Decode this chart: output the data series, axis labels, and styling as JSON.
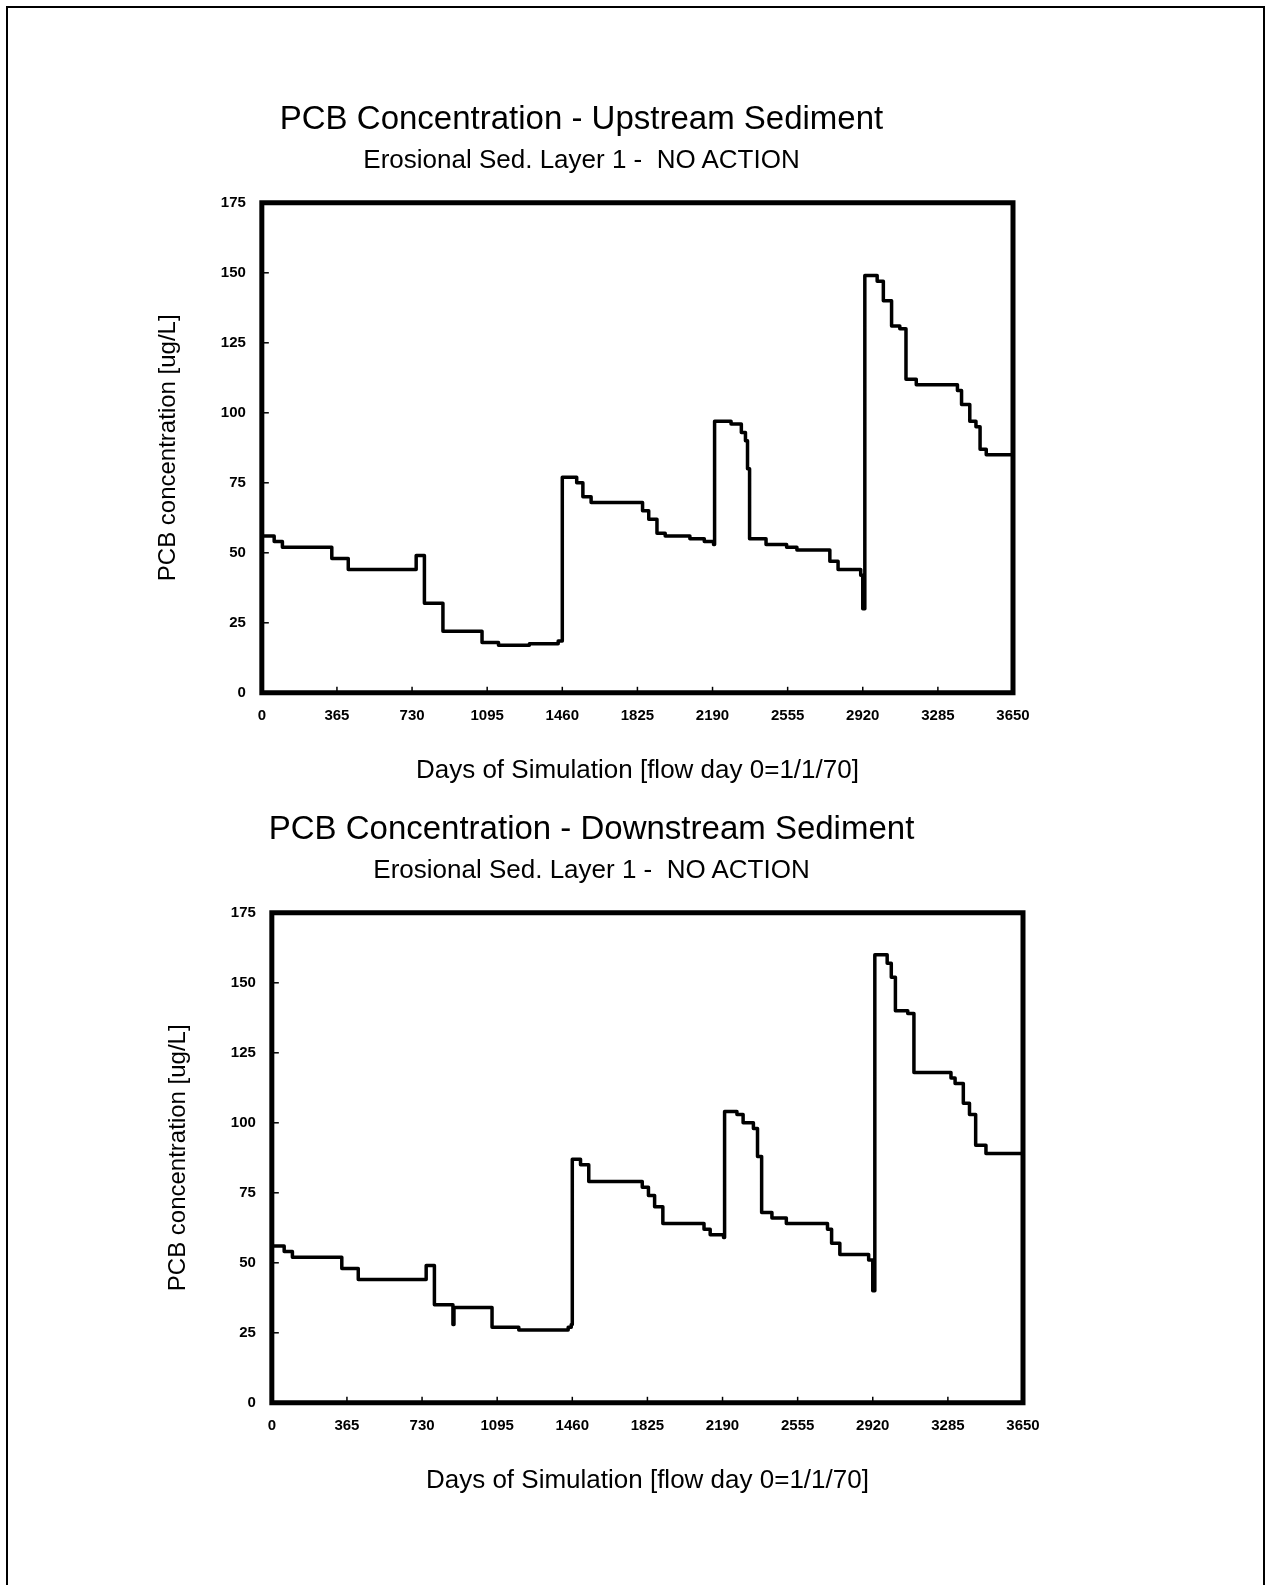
{
  "chart_data": [
    {
      "type": "step",
      "title": "PCB Concentration - Upstream Sediment",
      "subtitle": "Erosional Sed. Layer 1 -  NO ACTION",
      "xlabel": "Days of Simulation [flow day 0=1/1/70]",
      "ylabel": "PCB concentration [ug/L]",
      "xlim": [
        0,
        3650
      ],
      "xticks": [
        0,
        365,
        730,
        1095,
        1460,
        1825,
        2190,
        2555,
        2920,
        3285,
        3650
      ],
      "ylim": [
        0,
        175
      ],
      "yticks": [
        0,
        25,
        50,
        75,
        100,
        125,
        150,
        175
      ],
      "grid": false,
      "legend": false,
      "marker": "none",
      "line_style": "solid",
      "series": [
        {
          "color": "#000000",
          "x": [
            0,
            60,
            100,
            340,
            420,
            750,
            790,
            880,
            1070,
            1150,
            1300,
            1440,
            1460,
            1530,
            1560,
            1600,
            1850,
            1880,
            1920,
            1960,
            2080,
            2150,
            2195,
            2200,
            2280,
            2330,
            2350,
            2360,
            2370,
            2450,
            2550,
            2600,
            2760,
            2800,
            2910,
            2920,
            2930,
            2990,
            3020,
            3060,
            3100,
            3130,
            3180,
            3380,
            3400,
            3440,
            3470,
            3490,
            3520,
            3640,
            3650
          ],
          "values": [
            56,
            54,
            52,
            48,
            44,
            49,
            32,
            22,
            18,
            17,
            17.5,
            18.5,
            77,
            75,
            70,
            68,
            65,
            62,
            57,
            56,
            55,
            54,
            53,
            97,
            96,
            93,
            90,
            80,
            55,
            53,
            52,
            51,
            47,
            44,
            42,
            30,
            149,
            147,
            140,
            131,
            130,
            112,
            110,
            108,
            103,
            97,
            95,
            87,
            85,
            85,
            58
          ]
        }
      ]
    },
    {
      "type": "step",
      "title": "PCB Concentration - Downstream Sediment",
      "subtitle": "Erosional Sed. Layer 1 -  NO ACTION",
      "xlabel": "Days of Simulation [flow day 0=1/1/70]",
      "ylabel": "PCB concentration [ug/L]",
      "xlim": [
        0,
        3650
      ],
      "xticks": [
        0,
        365,
        730,
        1095,
        1460,
        1825,
        2190,
        2555,
        2920,
        3285,
        3650
      ],
      "ylim": [
        0,
        175
      ],
      "yticks": [
        0,
        25,
        50,
        75,
        100,
        125,
        150,
        175
      ],
      "grid": false,
      "legend": false,
      "marker": "none",
      "line_style": "solid",
      "series": [
        {
          "color": "#000000",
          "x": [
            0,
            60,
            100,
            340,
            420,
            750,
            790,
            880,
            885,
            1070,
            1200,
            1440,
            1455,
            1460,
            1500,
            1540,
            1800,
            1830,
            1860,
            1900,
            2100,
            2130,
            2195,
            2200,
            2260,
            2290,
            2340,
            2360,
            2380,
            2430,
            2500,
            2700,
            2720,
            2760,
            2900,
            2920,
            2930,
            2990,
            3010,
            3030,
            3090,
            3120,
            3300,
            3320,
            3360,
            3390,
            3420,
            3470,
            3640,
            3650
          ],
          "values": [
            56,
            54,
            52,
            48,
            44,
            49,
            35,
            28,
            34,
            27,
            26,
            27,
            28,
            87,
            85,
            79,
            77,
            74,
            70,
            64,
            62,
            60,
            59,
            104,
            103,
            100,
            98,
            88,
            68,
            66,
            64,
            62,
            57,
            53,
            51,
            40,
            160,
            157,
            152,
            140,
            139,
            118,
            116,
            114,
            107,
            103,
            92,
            89,
            89,
            70
          ]
        }
      ]
    }
  ]
}
